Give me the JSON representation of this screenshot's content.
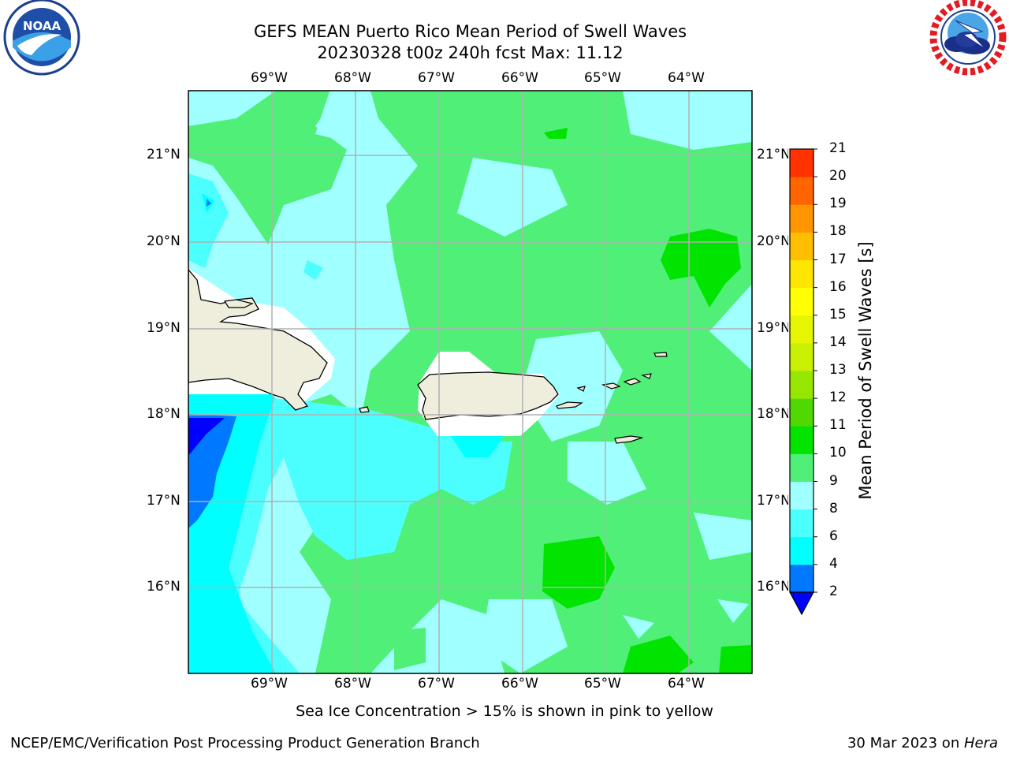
{
  "header": {
    "title_line1": "GEFS MEAN Puerto Rico Mean Period of Swell Waves",
    "title_line2": "20230328 t00z 240h fcst   Max: 11.12"
  },
  "logos": {
    "left": {
      "icon": "noaa-logo",
      "text": "NOAA",
      "ring_text": "NATIONAL OCEANIC AND ATMOSPHERIC ADMINISTRATION · U.S. DEPARTMENT OF COMMERCE"
    },
    "right": {
      "icon": "nws-logo",
      "ring_text": "NATIONAL WEATHER SERVICE"
    }
  },
  "map": {
    "lon_labels": [
      "69°W",
      "68°W",
      "67°W",
      "66°W",
      "65°W",
      "64°W"
    ],
    "lat_labels": [
      "21°N",
      "20°N",
      "19°N",
      "18°N",
      "17°N",
      "16°N"
    ],
    "colors": {
      "land": "#efeddc",
      "period_2_4": "#0078ff",
      "period_4_6": "#00ffff",
      "period_6_8": "#4cffff",
      "period_8_9": "#a0ffff",
      "period_9_10": "#50f078",
      "period_10_11": "#00e400",
      "below_2": "#0000ff",
      "grid": "#b0b0b0"
    }
  },
  "colorbar": {
    "label": "Mean Period of Swell Waves [s]",
    "levels": [
      "2",
      "4",
      "6",
      "8",
      "9",
      "10",
      "11",
      "12",
      "13",
      "14",
      "15",
      "16",
      "17",
      "18",
      "19",
      "20",
      "21"
    ],
    "colors": [
      "#0078ff",
      "#00ffff",
      "#4cffff",
      "#a0ffff",
      "#50f078",
      "#00e400",
      "#50d800",
      "#96e600",
      "#c8f000",
      "#e6f500",
      "#ffff00",
      "#ffe600",
      "#ffbe00",
      "#ff9600",
      "#ff6400",
      "#ff3200"
    ],
    "under_color": "#0000ff"
  },
  "footer": {
    "note": "Sea Ice Concentration > 15% is shown in pink to yellow",
    "left": "NCEP/EMC/Verification Post Processing Product Generation Branch",
    "right_prefix": "30 Mar 2023 on ",
    "right_host": "Hera"
  }
}
